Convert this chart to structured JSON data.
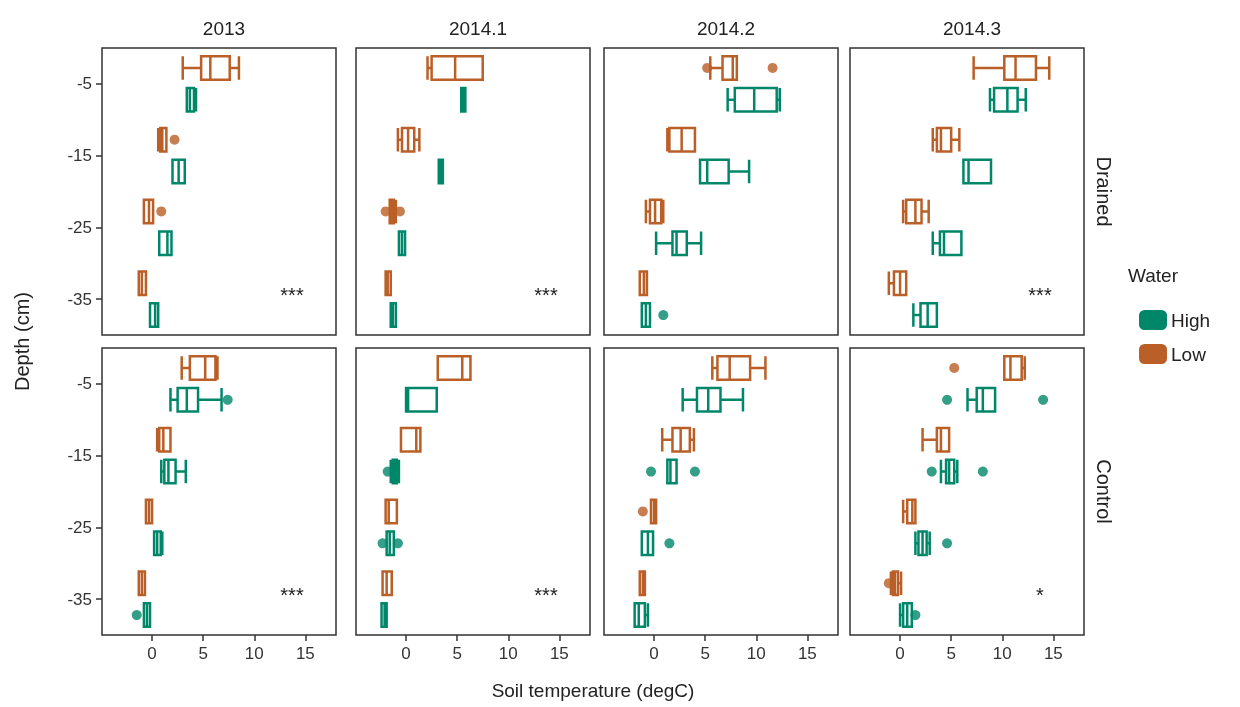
{
  "chart_data": [
    {
      "type": "box",
      "orientation": "horizontal",
      "title": "2013",
      "ylabel": "Depth (cm)",
      "categories": [
        "-5",
        "-15",
        "-25",
        "-35"
      ],
      "xlim": [
        -4.9,
        18
      ],
      "xticks": [
        0,
        5,
        10,
        15
      ],
      "tick_labels": "y",
      "legend": false,
      "annotations": [
        "***"
      ],
      "series": [
        {
          "color": "#00876a",
          "boxes": [
            {
              "low": 3.4,
              "q1": 3.4,
              "median": 3.7,
              "q3": 4.1,
              "high": 4.3
            },
            {
              "low": 2.0,
              "q1": 2.0,
              "median": 2.6,
              "q3": 3.2,
              "high": 3.2
            },
            {
              "low": 0.7,
              "q1": 0.7,
              "median": 1.5,
              "q3": 1.9,
              "high": 1.9
            },
            {
              "low": -0.2,
              "q1": -0.2,
              "median": 0.3,
              "q3": 0.6,
              "high": 0.6
            }
          ]
        },
        {
          "color": "#b95f27",
          "boxes": [
            {
              "low": 3.0,
              "q1": 4.8,
              "median": 5.7,
              "q3": 7.6,
              "high": 8.5
            },
            {
              "low": 0.6,
              "q1": 0.8,
              "median": 1.0,
              "q3": 1.4,
              "high": 1.4,
              "outliers": [
                2.2
              ]
            },
            {
              "low": -0.8,
              "q1": -0.8,
              "median": -0.3,
              "q3": 0.1,
              "high": 0.1,
              "outliers": [
                0.9
              ]
            },
            {
              "low": -1.3,
              "q1": -1.3,
              "median": -1.0,
              "q3": -0.6,
              "high": -0.6
            }
          ]
        }
      ]
    },
    {
      "type": "box",
      "orientation": "horizontal",
      "title": "2014.1",
      "categories": [
        "-5",
        "-15",
        "-25",
        "-35"
      ],
      "xlim": [
        -4.9,
        18
      ],
      "xticks": [
        0,
        5,
        10,
        15
      ],
      "tick_labels": false,
      "legend": false,
      "annotations": [
        "***"
      ],
      "series": [
        {
          "color": "#00876a",
          "boxes": [
            {
              "low": 5.4,
              "q1": 5.4,
              "median": 5.6,
              "q3": 5.8,
              "high": 5.8
            },
            {
              "low": 3.2,
              "q1": 3.2,
              "median": 3.4,
              "q3": 3.6,
              "high": 3.6
            },
            {
              "low": -0.7,
              "q1": -0.7,
              "median": -0.4,
              "q3": -0.1,
              "high": -0.1
            },
            {
              "low": -1.5,
              "q1": -1.5,
              "median": -1.3,
              "q3": -1.0,
              "high": -1.0
            }
          ]
        },
        {
          "color": "#b95f27",
          "boxes": [
            {
              "low": 2.1,
              "q1": 2.5,
              "median": 4.8,
              "q3": 7.5,
              "high": 7.5
            },
            {
              "low": -0.8,
              "q1": -0.4,
              "median": 0.2,
              "q3": 0.8,
              "high": 1.3
            },
            {
              "low": -1.6,
              "q1": -1.6,
              "median": -1.4,
              "q3": -1.2,
              "high": -1.0,
              "outliers": [
                -2.0,
                -0.6
              ]
            },
            {
              "low": -2.0,
              "q1": -2.0,
              "median": -1.8,
              "q3": -1.5,
              "high": -1.5
            }
          ]
        }
      ]
    },
    {
      "type": "box",
      "orientation": "horizontal",
      "title": "2014.2",
      "categories": [
        "-5",
        "-15",
        "-25",
        "-35"
      ],
      "xlim": [
        -4.9,
        18
      ],
      "xticks": [
        0,
        5,
        10,
        15
      ],
      "tick_labels": false,
      "legend": false,
      "series": [
        {
          "color": "#00876a",
          "boxes": [
            {
              "low": 7.2,
              "q1": 7.9,
              "median": 9.8,
              "q3": 12.0,
              "high": 12.3
            },
            {
              "low": 4.5,
              "q1": 4.5,
              "median": 5.2,
              "q3": 7.3,
              "high": 9.3
            },
            {
              "low": 0.2,
              "q1": 1.8,
              "median": 2.2,
              "q3": 3.2,
              "high": 4.6
            },
            {
              "low": -1.2,
              "q1": -1.2,
              "median": -0.8,
              "q3": -0.4,
              "high": -0.4,
              "outliers": [
                0.9
              ]
            }
          ]
        },
        {
          "color": "#b95f27",
          "boxes": [
            {
              "low": 5.5,
              "q1": 6.7,
              "median": 7.7,
              "q3": 8.1,
              "high": 8.1,
              "outliers": [
                5.2,
                11.6
              ]
            },
            {
              "low": 1.3,
              "q1": 1.5,
              "median": 2.7,
              "q3": 4.0,
              "high": 4.0
            },
            {
              "low": -0.8,
              "q1": -0.4,
              "median": 0.1,
              "q3": 0.7,
              "high": 0.9
            },
            {
              "low": -1.4,
              "q1": -1.4,
              "median": -1.0,
              "q3": -0.7,
              "high": -0.7
            }
          ]
        }
      ]
    },
    {
      "type": "box",
      "orientation": "horizontal",
      "title": "2014.3",
      "y2label": "Drained",
      "legend_title": "Water",
      "categories": [
        "-5",
        "-15",
        "-25",
        "-35"
      ],
      "xlim": [
        -4.9,
        18
      ],
      "xticks": [
        0,
        5,
        10,
        15
      ],
      "tick_labels": false,
      "legend": "right",
      "annotations": [
        "***"
      ],
      "series": [
        {
          "name": "High",
          "color": "#00876a",
          "boxes": [
            {
              "low": 8.8,
              "q1": 9.2,
              "median": 10.5,
              "q3": 11.5,
              "high": 12.3
            },
            {
              "low": 6.2,
              "q1": 6.2,
              "median": 6.7,
              "q3": 8.9,
              "high": 8.9
            },
            {
              "low": 3.2,
              "q1": 3.9,
              "median": 4.3,
              "q3": 6.0,
              "high": 6.0
            },
            {
              "low": 1.3,
              "q1": 2.0,
              "median": 2.7,
              "q3": 3.6,
              "high": 3.6
            }
          ]
        },
        {
          "name": "Low",
          "color": "#b95f27",
          "boxes": [
            {
              "low": 7.2,
              "q1": 10.2,
              "median": 11.3,
              "q3": 13.3,
              "high": 14.6
            },
            {
              "low": 3.2,
              "q1": 3.6,
              "median": 4.0,
              "q3": 5.0,
              "high": 5.8
            },
            {
              "low": 0.3,
              "q1": 0.6,
              "median": 1.5,
              "q3": 2.1,
              "high": 2.8
            },
            {
              "low": -1.1,
              "q1": -0.6,
              "median": 0.0,
              "q3": 0.6,
              "high": 0.6
            }
          ]
        }
      ]
    },
    {
      "type": "box",
      "orientation": "horizontal",
      "categories": [
        "-5",
        "-15",
        "-25",
        "-35"
      ],
      "xlim": [
        -4.9,
        18
      ],
      "xticks": [
        0,
        5,
        10,
        15
      ],
      "legend": false,
      "annotations": [
        "***"
      ],
      "series": [
        {
          "color": "#00876a",
          "boxes": [
            {
              "low": 1.8,
              "q1": 2.5,
              "median": 3.4,
              "q3": 4.5,
              "high": 6.8,
              "outliers": [
                7.4
              ]
            },
            {
              "low": 0.9,
              "q1": 1.2,
              "median": 1.6,
              "q3": 2.3,
              "high": 3.3
            },
            {
              "low": 0.2,
              "q1": 0.2,
              "median": 0.5,
              "q3": 0.85,
              "high": 1.0
            },
            {
              "low": -0.8,
              "q1": -0.8,
              "median": -0.5,
              "q3": -0.2,
              "high": -0.2,
              "outliers": [
                -1.5
              ]
            }
          ]
        },
        {
          "color": "#b95f27",
          "boxes": [
            {
              "low": 2.9,
              "q1": 3.7,
              "median": 5.2,
              "q3": 6.2,
              "high": 6.4
            },
            {
              "low": 0.5,
              "q1": 0.7,
              "median": 1.1,
              "q3": 1.8,
              "high": 1.8
            },
            {
              "low": -0.6,
              "q1": -0.6,
              "median": -0.3,
              "q3": 0.0,
              "high": 0.0
            },
            {
              "low": -1.3,
              "q1": -1.3,
              "median": -1.0,
              "q3": -0.7,
              "high": -0.7
            }
          ]
        }
      ]
    },
    {
      "type": "box",
      "orientation": "horizontal",
      "xlabel": "Soil temperature (degC)",
      "categories": [
        "-5",
        "-15",
        "-25",
        "-35"
      ],
      "xlim": [
        -4.9,
        18
      ],
      "xticks": [
        0,
        5,
        10,
        15
      ],
      "tick_labels": "x",
      "legend": false,
      "annotations": [
        "***"
      ],
      "series": [
        {
          "color": "#00876a",
          "boxes": [
            {
              "low": 0.0,
              "q1": 0.0,
              "median": 0.2,
              "q3": 3.0,
              "high": 3.0
            },
            {
              "low": -1.5,
              "q1": -1.3,
              "median": -1.1,
              "q3": -0.9,
              "high": -0.7,
              "outliers": [
                -1.8
              ]
            },
            {
              "low": -1.9,
              "q1": -1.9,
              "median": -1.6,
              "q3": -1.2,
              "high": -1.2,
              "outliers": [
                -2.3,
                -0.8
              ]
            },
            {
              "low": -2.4,
              "q1": -2.4,
              "median": -2.1,
              "q3": -1.9,
              "high": -1.9
            }
          ]
        },
        {
          "color": "#b95f27",
          "boxes": [
            {
              "low": 3.1,
              "q1": 3.1,
              "median": 5.5,
              "q3": 6.3,
              "high": 6.3
            },
            {
              "low": -0.5,
              "q1": -0.5,
              "median": 1.0,
              "q3": 1.4,
              "high": 1.4
            },
            {
              "low": -2.0,
              "q1": -2.0,
              "median": -1.7,
              "q3": -0.9,
              "high": -0.9
            },
            {
              "low": -2.3,
              "q1": -2.3,
              "median": -1.9,
              "q3": -1.4,
              "high": -1.4
            }
          ]
        }
      ]
    },
    {
      "type": "box",
      "orientation": "horizontal",
      "categories": [
        "-5",
        "-15",
        "-25",
        "-35"
      ],
      "xlim": [
        -4.9,
        18
      ],
      "xticks": [
        0,
        5,
        10,
        15
      ],
      "tick_labels": "x",
      "legend": false,
      "series": [
        {
          "color": "#00876a",
          "boxes": [
            {
              "low": 2.8,
              "q1": 4.2,
              "median": 5.3,
              "q3": 6.5,
              "high": 8.7
            },
            {
              "low": 1.3,
              "q1": 1.3,
              "median": 1.6,
              "q3": 2.2,
              "high": 2.2,
              "outliers": [
                -0.3,
                4.0
              ]
            },
            {
              "low": -1.2,
              "q1": -1.2,
              "median": -0.6,
              "q3": -0.1,
              "high": -0.1,
              "outliers": [
                1.5
              ]
            },
            {
              "low": -1.9,
              "q1": -1.9,
              "median": -1.5,
              "q3": -0.9,
              "high": -0.6
            }
          ]
        },
        {
          "color": "#b95f27",
          "boxes": [
            {
              "low": 5.7,
              "q1": 6.2,
              "median": 7.4,
              "q3": 9.4,
              "high": 10.9
            },
            {
              "low": 0.8,
              "q1": 1.8,
              "median": 2.6,
              "q3": 3.5,
              "high": 3.9
            },
            {
              "low": -0.3,
              "q1": -0.3,
              "median": 0.0,
              "q3": 0.2,
              "high": 0.2,
              "outliers": [
                -1.1
              ]
            },
            {
              "low": -1.4,
              "q1": -1.4,
              "median": -1.1,
              "q3": -0.9,
              "high": -0.9
            }
          ]
        }
      ]
    },
    {
      "type": "box",
      "orientation": "horizontal",
      "y2label": "Control",
      "categories": [
        "-5",
        "-15",
        "-25",
        "-35"
      ],
      "xlim": [
        -4.9,
        18
      ],
      "xticks": [
        0,
        5,
        10,
        15
      ],
      "tick_labels": "x",
      "legend": false,
      "annotations": [
        "*"
      ],
      "series": [
        {
          "color": "#00876a",
          "boxes": [
            {
              "low": 6.6,
              "q1": 7.5,
              "median": 8.1,
              "q3": 9.3,
              "high": 9.3,
              "outliers": [
                4.6,
                14.0
              ]
            },
            {
              "low": 4.0,
              "q1": 4.5,
              "median": 4.8,
              "q3": 5.3,
              "high": 5.6,
              "outliers": [
                3.1,
                8.1
              ]
            },
            {
              "low": 1.5,
              "q1": 1.8,
              "median": 2.2,
              "q3": 2.6,
              "high": 2.9,
              "outliers": [
                4.6
              ]
            },
            {
              "low": 0.0,
              "q1": 0.3,
              "median": 0.7,
              "q3": 1.15,
              "high": 1.15,
              "outliers": [
                1.5
              ]
            }
          ]
        },
        {
          "color": "#b95f27",
          "boxes": [
            {
              "low": 10.2,
              "q1": 10.2,
              "median": 10.8,
              "q3": 11.9,
              "high": 12.2,
              "outliers": [
                5.3
              ]
            },
            {
              "low": 2.2,
              "q1": 3.6,
              "median": 4.0,
              "q3": 4.8,
              "high": 4.8
            },
            {
              "low": 0.3,
              "q1": 0.7,
              "median": 1.2,
              "q3": 1.5,
              "high": 1.5
            },
            {
              "low": -0.9,
              "q1": -0.7,
              "median": -0.5,
              "q3": -0.2,
              "high": 0.1,
              "outliers": [
                -1.1
              ]
            }
          ]
        }
      ]
    }
  ]
}
